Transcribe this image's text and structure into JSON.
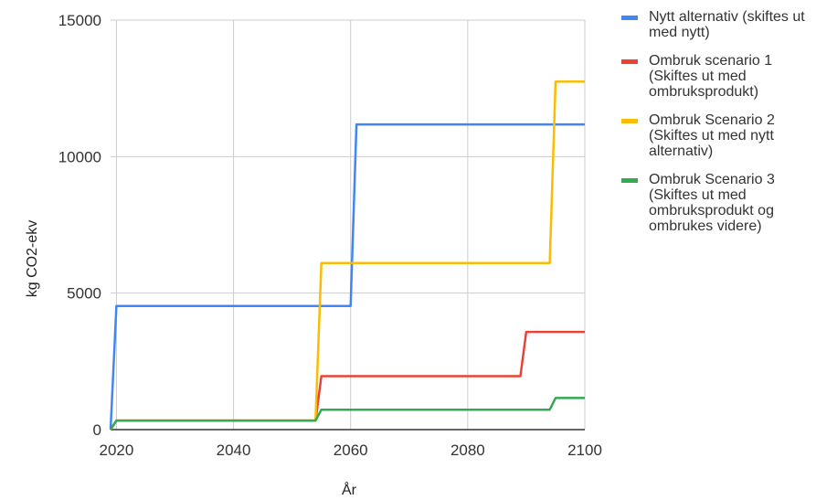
{
  "chart_data": {
    "type": "line",
    "title": "",
    "xlabel": "År",
    "ylabel": "kg CO2-ekv",
    "xlim": [
      2019,
      2100
    ],
    "ylim": [
      0,
      15000
    ],
    "x_ticks": [
      2020,
      2040,
      2060,
      2080,
      2100
    ],
    "y_ticks": [
      0,
      5000,
      10000,
      15000
    ],
    "grid": true,
    "legend_position": "right",
    "series": [
      {
        "name": "Nytt alternativ (skiftes ut med nytt)",
        "color": "#4285f4",
        "points": [
          [
            2019,
            0
          ],
          [
            2020,
            4530
          ],
          [
            2060,
            4530
          ],
          [
            2061,
            11180
          ],
          [
            2100,
            11180
          ]
        ]
      },
      {
        "name": "Ombruk scenario 1 (Skiftes ut med ombruksprodukt)",
        "color": "#ea4335",
        "points": [
          [
            2019,
            0
          ],
          [
            2020,
            330
          ],
          [
            2054,
            330
          ],
          [
            2055,
            1960
          ],
          [
            2089,
            1960
          ],
          [
            2090,
            3580
          ],
          [
            2100,
            3580
          ]
        ]
      },
      {
        "name": "Ombruk Scenario 2 (Skiftes ut med nytt alternativ)",
        "color": "#fbbc04",
        "points": [
          [
            2019,
            0
          ],
          [
            2020,
            330
          ],
          [
            2054,
            330
          ],
          [
            2055,
            6100
          ],
          [
            2094,
            6100
          ],
          [
            2095,
            12750
          ],
          [
            2100,
            12750
          ]
        ]
      },
      {
        "name": "Ombruk Scenario 3 (Skiftes ut med ombruksprodukt og ombrukes videre)",
        "color": "#34a853",
        "points": [
          [
            2019,
            0
          ],
          [
            2020,
            330
          ],
          [
            2054,
            330
          ],
          [
            2055,
            730
          ],
          [
            2094,
            730
          ],
          [
            2095,
            1160
          ],
          [
            2100,
            1160
          ]
        ]
      }
    ]
  }
}
